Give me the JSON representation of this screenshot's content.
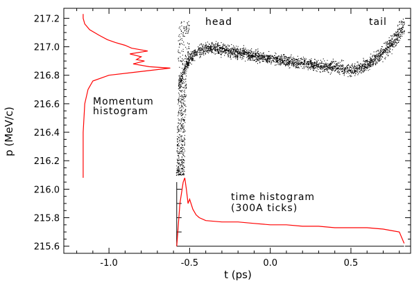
{
  "chart_data": {
    "type": "scatter",
    "xlabel": "t (ps)",
    "ylabel": "p (MeV/c)",
    "xlim": [
      -1.28,
      0.87
    ],
    "ylim": [
      215.55,
      217.27
    ],
    "x_ticks": [
      -1.0,
      -0.5,
      0.0,
      0.5
    ],
    "x_tick_labels": [
      "-1.0",
      "-0.5",
      "0.0",
      "0.5"
    ],
    "y_ticks": [
      215.6,
      215.8,
      216.0,
      216.2,
      216.4,
      216.6,
      216.8,
      217.0,
      217.2
    ],
    "y_tick_labels": [
      "215.6",
      "215.8",
      "216.0",
      "216.2",
      "216.4",
      "216.6",
      "216.8",
      "217.0",
      "217.2"
    ],
    "annotations": {
      "head": "head",
      "tail": "tail",
      "momentum_line1": "Momentum",
      "momentum_line2": "histogram",
      "time_line1": "time histogram",
      "time_line2": "(300A ticks)"
    },
    "phase_space_centerline": {
      "t": [
        -0.57,
        -0.55,
        -0.53,
        -0.5,
        -0.45,
        -0.4,
        -0.35,
        -0.3,
        -0.25,
        -0.2,
        -0.15,
        -0.1,
        -0.05,
        0.0,
        0.05,
        0.1,
        0.15,
        0.2,
        0.25,
        0.3,
        0.35,
        0.4,
        0.45,
        0.5,
        0.55,
        0.6,
        0.65,
        0.7,
        0.75,
        0.8,
        0.83
      ],
      "p": [
        216.75,
        216.78,
        216.85,
        216.92,
        216.97,
        216.99,
        216.99,
        216.98,
        216.97,
        216.96,
        216.95,
        216.94,
        216.93,
        216.92,
        216.91,
        216.9,
        216.89,
        216.89,
        216.88,
        216.87,
        216.86,
        216.86,
        216.85,
        216.84,
        216.85,
        216.88,
        216.92,
        216.97,
        217.03,
        217.1,
        217.15
      ]
    },
    "momentum_histogram": {
      "p": [
        216.08,
        216.2,
        216.4,
        216.6,
        216.7,
        216.76,
        216.8,
        216.82,
        216.85,
        216.86,
        216.88,
        216.9,
        216.91,
        216.93,
        216.95,
        216.97,
        216.99,
        217.01,
        217.03,
        217.05,
        217.08,
        217.12,
        217.16,
        217.2,
        217.23
      ],
      "t": [
        -1.16,
        -1.16,
        -1.16,
        -1.15,
        -1.13,
        -1.1,
        -1.0,
        -0.85,
        -0.62,
        -0.75,
        -0.85,
        -0.78,
        -0.83,
        -0.8,
        -0.87,
        -0.76,
        -0.86,
        -0.9,
        -0.96,
        -1.01,
        -1.06,
        -1.12,
        -1.15,
        -1.16,
        -1.16
      ]
    },
    "time_histogram": {
      "t": [
        -0.58,
        -0.56,
        -0.54,
        -0.53,
        -0.52,
        -0.51,
        -0.5,
        -0.48,
        -0.46,
        -0.44,
        -0.4,
        -0.3,
        -0.2,
        -0.1,
        0.0,
        0.1,
        0.2,
        0.3,
        0.4,
        0.5,
        0.6,
        0.7,
        0.75,
        0.8,
        0.83
      ],
      "p": [
        215.6,
        215.9,
        216.05,
        216.08,
        216.0,
        215.9,
        215.93,
        215.86,
        215.82,
        215.8,
        215.78,
        215.77,
        215.77,
        215.76,
        215.75,
        215.75,
        215.74,
        215.74,
        215.73,
        215.73,
        215.73,
        215.72,
        215.71,
        215.7,
        215.62
      ]
    }
  }
}
